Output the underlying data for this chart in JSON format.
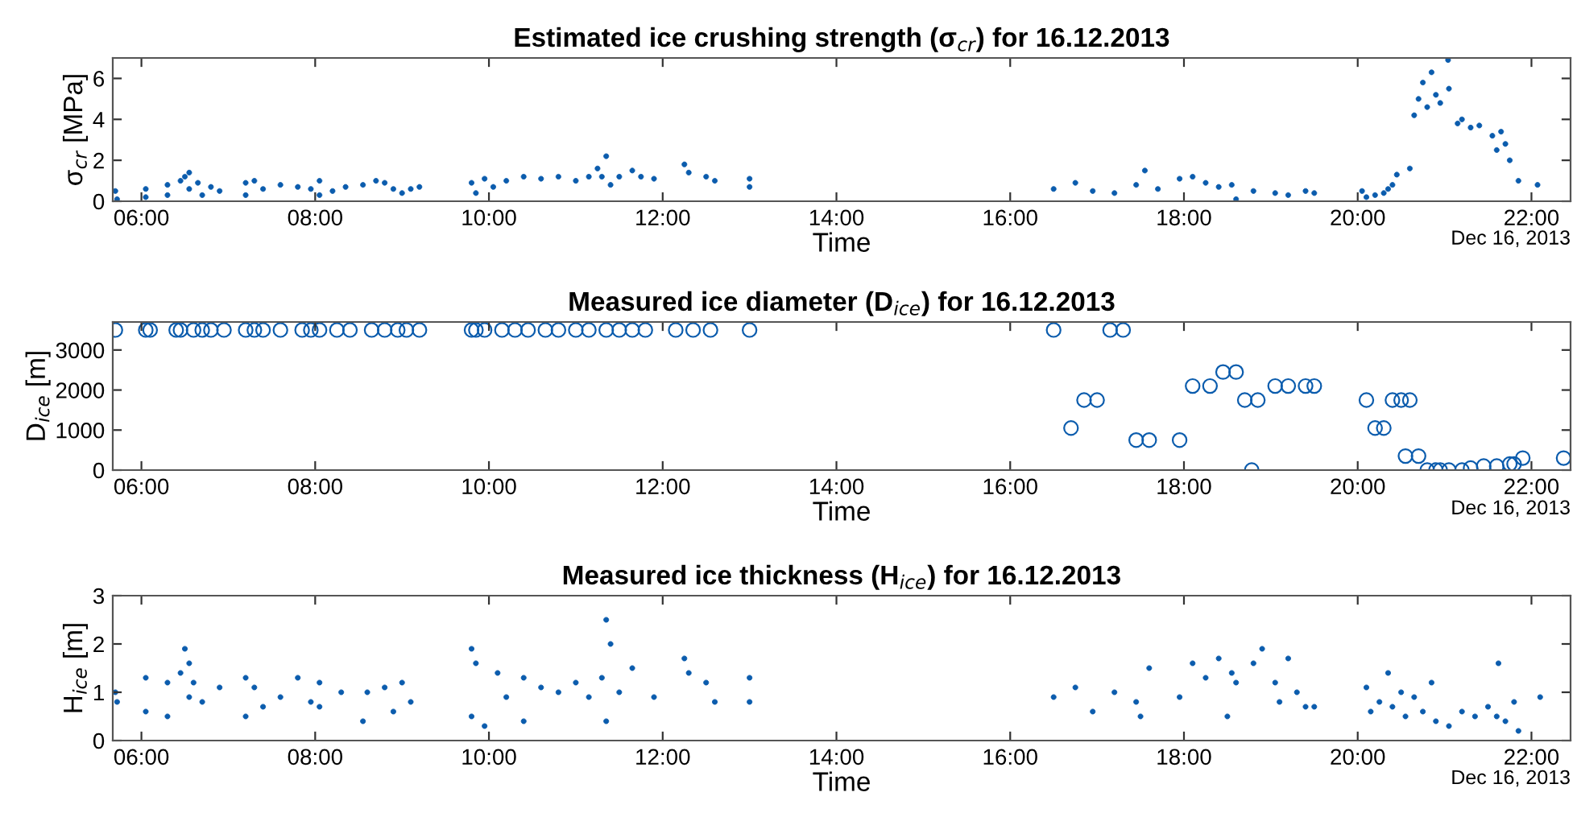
{
  "chart_data": [
    {
      "type": "scatter",
      "title": "Estimated ice crushing strength (σ$_{cr}$) for 16.12.2013",
      "xlabel": "Time",
      "ylabel": "σ$_{cr}$ [MPa]",
      "annotations": [
        "Dec 16, 2013"
      ],
      "marker": "circle",
      "xlim": [
        5.67,
        22.45
      ],
      "xticks": [
        {
          "value": 6,
          "label": "06:00"
        },
        {
          "value": 8,
          "label": "08:00"
        },
        {
          "value": 10,
          "label": "10:00"
        },
        {
          "value": 12,
          "label": "12:00"
        },
        {
          "value": 14,
          "label": "14:00"
        },
        {
          "value": 16,
          "label": "16:00"
        },
        {
          "value": 18,
          "label": "18:00"
        },
        {
          "value": 20,
          "label": "20:00"
        },
        {
          "value": 22,
          "label": "22:00"
        }
      ],
      "ylim": [
        0,
        7
      ],
      "yticks": [
        0,
        2,
        4,
        6
      ],
      "series": [
        {
          "color": "#0b5cad",
          "x": [
            5.7,
            5.72,
            6.05,
            6.05,
            6.3,
            6.3,
            6.45,
            6.5,
            6.55,
            6.55,
            6.65,
            6.7,
            6.8,
            6.9,
            7.2,
            7.2,
            7.3,
            7.4,
            7.6,
            7.8,
            7.95,
            8.05,
            8.05,
            8.2,
            8.35,
            8.55,
            8.7,
            8.8,
            8.9,
            9.0,
            9.1,
            9.2,
            9.8,
            9.85,
            9.95,
            10.05,
            10.2,
            10.4,
            10.6,
            10.8,
            11.0,
            11.15,
            11.25,
            11.3,
            11.35,
            11.4,
            11.5,
            11.65,
            11.75,
            11.9,
            12.25,
            12.3,
            12.5,
            12.6,
            13.0,
            13.0,
            16.5,
            16.75,
            16.95,
            17.2,
            17.45,
            17.55,
            17.7,
            17.95,
            18.1,
            18.25,
            18.4,
            18.55,
            18.6,
            18.8,
            19.05,
            19.2,
            19.4,
            19.5,
            20.05,
            20.1,
            20.2,
            20.3,
            20.35,
            20.4,
            20.45,
            20.6,
            20.65,
            20.7,
            20.75,
            20.8,
            20.85,
            20.9,
            20.95,
            21.04,
            21.05,
            21.15,
            21.2,
            21.3,
            21.4,
            21.55,
            21.6,
            21.65,
            21.7,
            21.75,
            21.85,
            22.07
          ],
          "values": [
            0.5,
            0.1,
            0.6,
            0.2,
            0.8,
            0.3,
            1.0,
            1.2,
            1.4,
            0.6,
            0.9,
            0.3,
            0.7,
            0.5,
            0.9,
            0.3,
            1.0,
            0.6,
            0.8,
            0.7,
            0.6,
            1.0,
            0.3,
            0.5,
            0.7,
            0.8,
            1.0,
            0.9,
            0.6,
            0.4,
            0.6,
            0.7,
            0.9,
            0.4,
            1.1,
            0.7,
            1.0,
            1.2,
            1.1,
            1.2,
            1.0,
            1.2,
            1.6,
            1.2,
            2.2,
            0.8,
            1.2,
            1.5,
            1.2,
            1.1,
            1.8,
            1.4,
            1.2,
            1.0,
            1.1,
            0.7,
            0.6,
            0.9,
            0.5,
            0.4,
            0.8,
            1.5,
            0.6,
            1.1,
            1.2,
            0.9,
            0.7,
            0.8,
            0.1,
            0.5,
            0.4,
            0.3,
            0.5,
            0.4,
            0.5,
            0.2,
            0.3,
            0.4,
            0.6,
            0.8,
            1.3,
            1.6,
            4.2,
            5.0,
            5.8,
            4.6,
            6.3,
            5.2,
            4.8,
            6.9,
            5.5,
            3.8,
            4.0,
            3.6,
            3.7,
            3.2,
            2.5,
            3.4,
            2.8,
            2.0,
            1.0,
            0.8
          ]
        }
      ]
    },
    {
      "type": "scatter",
      "title": "Measured ice diameter (D$_{ice}$) for 16.12.2013",
      "xlabel": "Time",
      "ylabel": "D$_{ice}$ [m]",
      "annotations": [
        "Dec 16, 2013"
      ],
      "marker": "circle",
      "xlim": [
        5.67,
        22.45
      ],
      "xticks": [
        {
          "value": 6,
          "label": "06:00"
        },
        {
          "value": 8,
          "label": "08:00"
        },
        {
          "value": 10,
          "label": "10:00"
        },
        {
          "value": 12,
          "label": "12:00"
        },
        {
          "value": 14,
          "label": "14:00"
        },
        {
          "value": 16,
          "label": "16:00"
        },
        {
          "value": 18,
          "label": "18:00"
        },
        {
          "value": 20,
          "label": "20:00"
        },
        {
          "value": 22,
          "label": "22:00"
        }
      ],
      "ylim": [
        0,
        3700
      ],
      "yticks": [
        0,
        1000,
        2000,
        3000
      ],
      "series": [
        {
          "color": "#0b5cad",
          "x": [
            5.7,
            6.05,
            6.1,
            6.4,
            6.45,
            6.6,
            6.7,
            6.8,
            6.95,
            7.2,
            7.3,
            7.4,
            7.6,
            7.85,
            7.95,
            8.05,
            8.25,
            8.4,
            8.65,
            8.8,
            8.95,
            9.05,
            9.2,
            9.8,
            9.85,
            9.95,
            10.15,
            10.3,
            10.45,
            10.65,
            10.8,
            11.0,
            11.15,
            11.35,
            11.5,
            11.65,
            11.8,
            12.15,
            12.35,
            12.55,
            13.0,
            16.5,
            17.15,
            17.3,
            16.7,
            16.85,
            17.0,
            17.45,
            17.6,
            17.95,
            18.1,
            18.3,
            18.45,
            18.6,
            18.7,
            18.85,
            18.78,
            19.05,
            19.2,
            19.4,
            19.5,
            20.1,
            20.2,
            20.3,
            20.4,
            20.5,
            20.6,
            20.55,
            20.7,
            20.8,
            20.9,
            20.95,
            21.05,
            21.2,
            21.3,
            21.45,
            21.6,
            21.75,
            21.8,
            21.9,
            22.37
          ],
          "values": [
            3500,
            3500,
            3500,
            3500,
            3500,
            3500,
            3500,
            3500,
            3500,
            3500,
            3500,
            3500,
            3500,
            3500,
            3500,
            3500,
            3500,
            3500,
            3500,
            3500,
            3500,
            3500,
            3500,
            3500,
            3500,
            3500,
            3500,
            3500,
            3500,
            3500,
            3500,
            3500,
            3500,
            3500,
            3500,
            3500,
            3500,
            3500,
            3500,
            3500,
            3500,
            3500,
            3500,
            3500,
            1050,
            1750,
            1750,
            750,
            750,
            750,
            2100,
            2100,
            2450,
            2450,
            1750,
            1750,
            0,
            2100,
            2100,
            2100,
            2100,
            1750,
            1050,
            1050,
            1750,
            1750,
            1750,
            350,
            350,
            0,
            0,
            0,
            0,
            0,
            50,
            100,
            100,
            150,
            150,
            300,
            300
          ]
        }
      ]
    },
    {
      "type": "scatter",
      "title": "Measured ice thickness (H$_{ice}$) for 16.12.2013",
      "xlabel": "Time",
      "ylabel": "H$_{ice}$ [m]",
      "annotations": [
        "Dec 16, 2013"
      ],
      "marker": "circle",
      "xlim": [
        5.67,
        22.45
      ],
      "xticks": [
        {
          "value": 6,
          "label": "06:00"
        },
        {
          "value": 8,
          "label": "08:00"
        },
        {
          "value": 10,
          "label": "10:00"
        },
        {
          "value": 12,
          "label": "12:00"
        },
        {
          "value": 14,
          "label": "14:00"
        },
        {
          "value": 16,
          "label": "16:00"
        },
        {
          "value": 18,
          "label": "18:00"
        },
        {
          "value": 20,
          "label": "20:00"
        },
        {
          "value": 22,
          "label": "22:00"
        }
      ],
      "ylim": [
        0,
        3
      ],
      "yticks": [
        0,
        1,
        2,
        3
      ],
      "series": [
        {
          "color": "#0b5cad",
          "x": [
            5.7,
            5.72,
            6.05,
            6.05,
            6.3,
            6.3,
            6.45,
            6.5,
            6.55,
            6.55,
            6.6,
            6.7,
            6.9,
            7.2,
            7.2,
            7.3,
            7.4,
            7.6,
            7.8,
            7.95,
            8.05,
            8.05,
            8.3,
            8.55,
            8.6,
            8.8,
            8.9,
            9.0,
            9.1,
            9.8,
            9.8,
            9.85,
            9.95,
            10.1,
            10.2,
            10.4,
            10.4,
            10.6,
            10.8,
            11.0,
            11.15,
            11.3,
            11.35,
            11.35,
            11.4,
            11.5,
            11.65,
            11.9,
            12.25,
            12.3,
            12.5,
            12.6,
            13.0,
            13.0,
            16.5,
            16.75,
            16.95,
            17.2,
            17.45,
            17.5,
            17.6,
            17.95,
            18.1,
            18.25,
            18.4,
            18.5,
            18.55,
            18.6,
            18.8,
            18.9,
            19.05,
            19.1,
            19.2,
            19.3,
            19.4,
            19.5,
            20.1,
            20.15,
            20.25,
            20.35,
            20.4,
            20.5,
            20.55,
            20.65,
            20.75,
            20.85,
            20.9,
            21.05,
            21.2,
            21.35,
            21.5,
            21.6,
            21.62,
            21.7,
            21.8,
            21.85,
            22.1
          ],
          "values": [
            1.0,
            0.8,
            1.3,
            0.6,
            1.2,
            0.5,
            1.4,
            1.9,
            1.6,
            0.9,
            1.2,
            0.8,
            1.1,
            1.3,
            0.5,
            1.1,
            0.7,
            0.9,
            1.3,
            0.8,
            1.2,
            0.7,
            1.0,
            0.4,
            1.0,
            1.1,
            0.6,
            1.2,
            0.8,
            1.9,
            0.5,
            1.6,
            0.3,
            1.4,
            0.9,
            1.3,
            0.4,
            1.1,
            1.0,
            1.2,
            0.9,
            1.3,
            2.5,
            0.4,
            2.0,
            1.0,
            1.5,
            0.9,
            1.7,
            1.4,
            1.2,
            0.8,
            1.3,
            0.8,
            0.9,
            1.1,
            0.6,
            1.0,
            0.8,
            0.5,
            1.5,
            0.9,
            1.6,
            1.3,
            1.7,
            0.5,
            1.4,
            1.2,
            1.6,
            1.9,
            1.2,
            0.8,
            1.7,
            1.0,
            0.7,
            0.7,
            1.1,
            0.6,
            0.8,
            1.4,
            0.7,
            1.0,
            0.5,
            0.9,
            0.6,
            1.2,
            0.4,
            0.3,
            0.6,
            0.5,
            0.7,
            0.5,
            1.6,
            0.4,
            0.8,
            0.2,
            0.9
          ]
        }
      ]
    }
  ]
}
